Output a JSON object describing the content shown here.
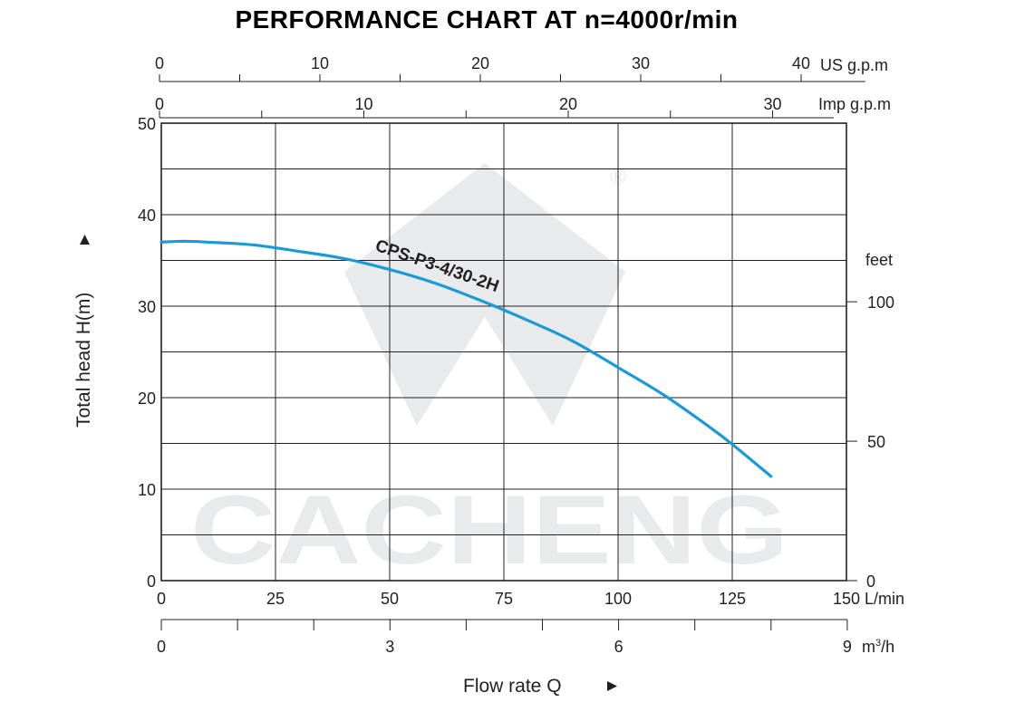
{
  "chart_data": {
    "type": "line",
    "title": "PERFORMANCE CHART AT n=4000r/min",
    "watermark": "CACHENG",
    "ylabel": "Total  head H(m)",
    "xlabel": "Flow rate  Q",
    "ylim": [
      0,
      50
    ],
    "xlim": [
      0,
      150
    ],
    "grid": true,
    "y_ticks": [
      "0",
      "10",
      "20",
      "30",
      "40",
      "50"
    ],
    "x_ticks": [
      "0",
      "25",
      "50",
      "75",
      "100",
      "125",
      "150"
    ],
    "x_unit": "L/min",
    "top_axis_us": {
      "unit": "US g.p.m",
      "ticks": [
        "0",
        "10",
        "20",
        "30",
        "40"
      ]
    },
    "top_axis_imp": {
      "unit": "Imp g.p.m",
      "ticks": [
        "0",
        "10",
        "20",
        "30"
      ]
    },
    "bottom_axis_m3h": {
      "unit": "m³/h",
      "unit_base": "m",
      "unit_sup": "3",
      "unit_tail": "/h",
      "ticks": [
        "0",
        "3",
        "6",
        "9"
      ]
    },
    "right_axis_feet": {
      "unit": "feet",
      "ticks": [
        "0",
        "50",
        "100"
      ]
    },
    "series": [
      {
        "name": "CPS-P3-4/30-2H",
        "color": "#1a9ad6",
        "x": [
          0,
          5,
          10,
          20,
          30,
          40,
          50,
          60,
          70,
          80,
          90,
          100,
          110,
          120,
          125,
          133.5
        ],
        "y": [
          37.0,
          37.1,
          37.0,
          36.7,
          36.0,
          35.2,
          34.0,
          32.5,
          30.6,
          28.5,
          26.2,
          23.3,
          20.3,
          16.8,
          14.9,
          11.4
        ]
      }
    ]
  }
}
